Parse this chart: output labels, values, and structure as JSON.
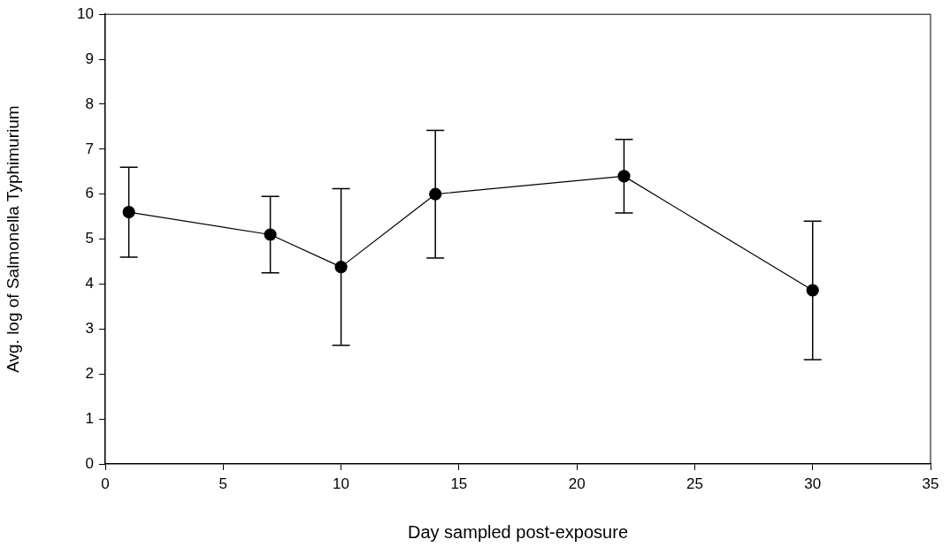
{
  "chart_data": {
    "type": "line",
    "xlabel": "Day sampled post-exposure",
    "ylabel": "Avg. log of Salmonella Typhimurium",
    "x": [
      1,
      7,
      10,
      14,
      22,
      30
    ],
    "series": [
      {
        "color": "#000000",
        "values": [
          5.6,
          5.1,
          4.38,
          6.0,
          6.4,
          3.86
        ],
        "errors": [
          1.0,
          0.85,
          1.74,
          1.42,
          0.82,
          1.54
        ]
      }
    ],
    "xlim": [
      0,
      35
    ],
    "xticks": [
      0,
      5,
      10,
      15,
      20,
      25,
      30,
      35
    ],
    "ylim": [
      0,
      10
    ],
    "yticks": [
      0,
      1,
      2,
      3,
      4,
      5,
      6,
      7,
      8,
      9,
      10
    ],
    "grid": false,
    "legend": false,
    "marker": "circle",
    "line_style": "solid"
  }
}
